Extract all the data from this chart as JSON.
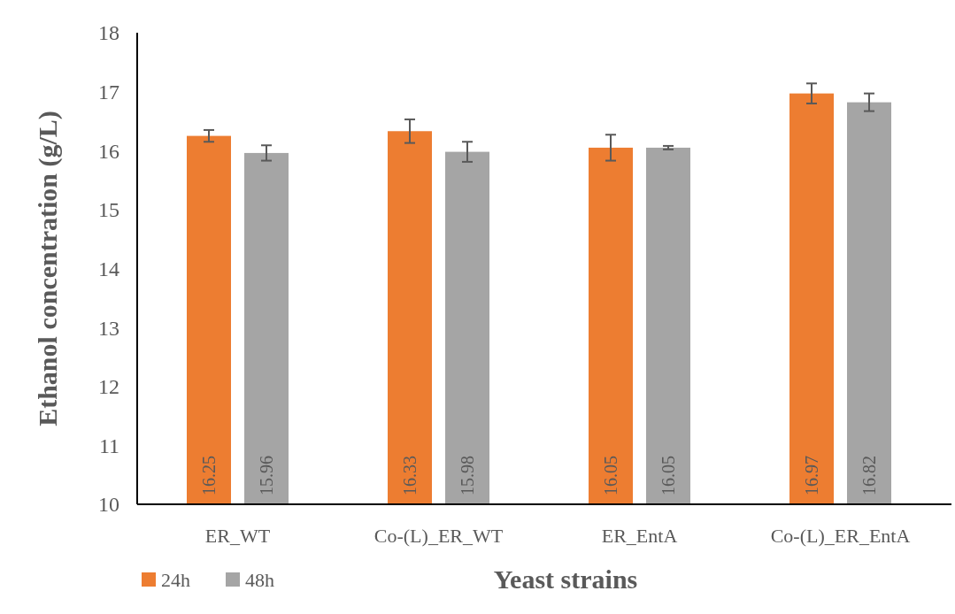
{
  "chart_data": {
    "type": "bar",
    "xlabel": "Yeast strains",
    "ylabel": "Ethanol concentration (g/L)",
    "categories": [
      "ER_WT",
      "Co-(L)_ER_WT",
      "ER_EntA",
      "Co-(L)_ER_EntA"
    ],
    "series": [
      {
        "name": "24h",
        "color": "#ed7d31",
        "values": [
          16.25,
          16.33,
          16.05,
          16.97
        ],
        "errors": [
          0.1,
          0.2,
          0.22,
          0.17
        ]
      },
      {
        "name": "48h",
        "color": "#a5a5a5",
        "values": [
          15.96,
          15.98,
          16.05,
          16.82
        ],
        "errors": [
          0.13,
          0.17,
          0.03,
          0.15
        ]
      }
    ],
    "ylim": [
      10,
      18
    ],
    "yticks": [
      10,
      11,
      12,
      13,
      14,
      15,
      16,
      17,
      18
    ],
    "data_labels": true,
    "legend": "bottom left",
    "grid": false
  }
}
